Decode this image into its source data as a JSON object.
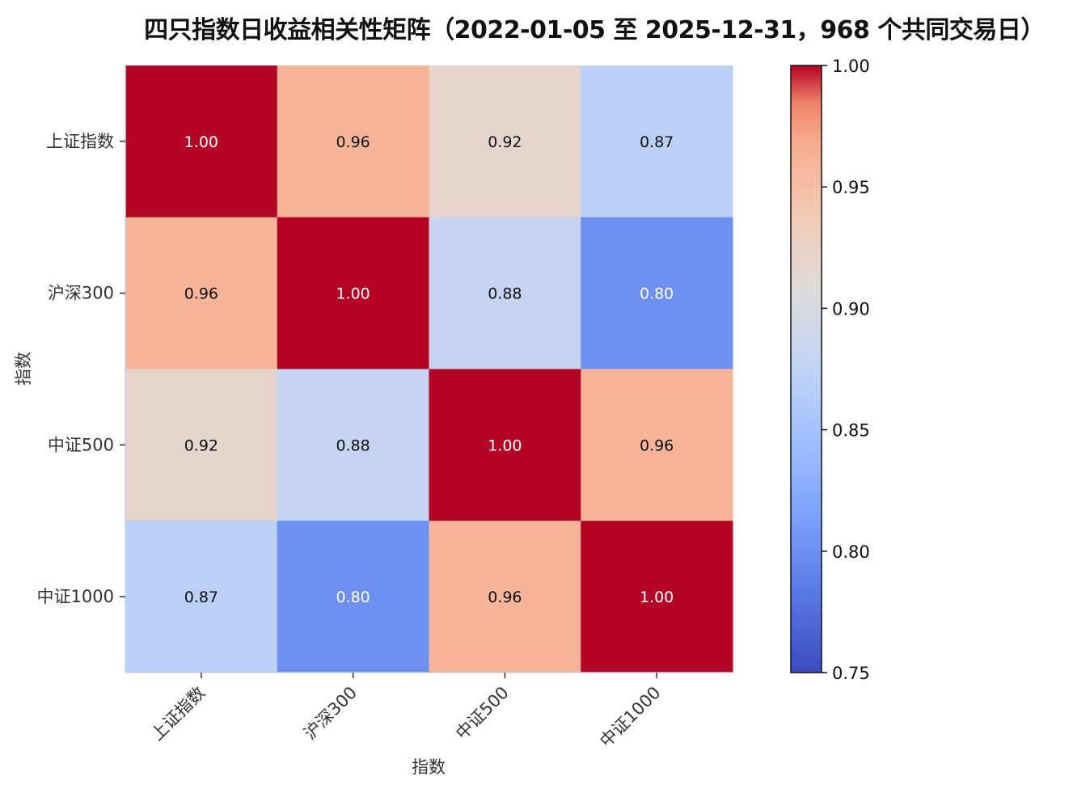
{
  "chart_data": {
    "type": "heatmap",
    "title": "四只指数日收益相关性矩阵（2022-01-05 至 2025-12-31，968 个共同交易日）",
    "xlabel": "指数",
    "ylabel": "指数",
    "x_categories": [
      "上证指数",
      "沪深300",
      "中证500",
      "中证1000"
    ],
    "y_categories": [
      "上证指数",
      "沪深300",
      "中证500",
      "中证1000"
    ],
    "values": [
      [
        1.0,
        0.96,
        0.92,
        0.87
      ],
      [
        0.96,
        1.0,
        0.88,
        0.8
      ],
      [
        0.92,
        0.88,
        1.0,
        0.96
      ],
      [
        0.87,
        0.8,
        0.96,
        1.0
      ]
    ],
    "value_format": "0.00",
    "colorbar": {
      "colormap": "coolwarm",
      "range": [
        0.75,
        1.0
      ],
      "ticks": [
        "0.75",
        "0.80",
        "0.85",
        "0.90",
        "0.95",
        "1.00"
      ]
    }
  }
}
